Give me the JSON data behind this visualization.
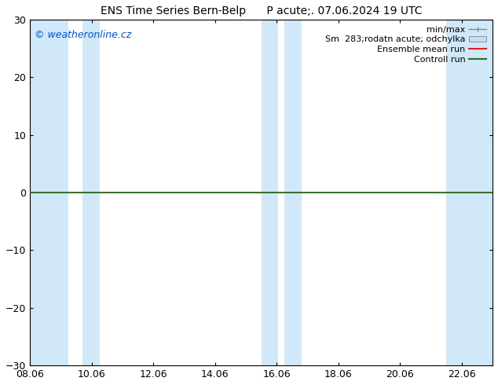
{
  "title_left": "ENS Time Series Bern-Belp",
  "title_right": "P acute;. 07.06.2024 19 UTC",
  "watermark": "© weatheronline.cz",
  "watermark_color": "#0055cc",
  "ylim": [
    -30,
    30
  ],
  "yticks": [
    -30,
    -20,
    -10,
    0,
    10,
    20,
    30
  ],
  "xlim_start": 0,
  "xlim_end": 15,
  "xtick_labels": [
    "08.06",
    "10.06",
    "12.06",
    "14.06",
    "16.06",
    "18.06",
    "20.06",
    "22.06"
  ],
  "xtick_positions": [
    0,
    2,
    4,
    6,
    8,
    10,
    12,
    14
  ],
  "background_color": "#ffffff",
  "band_color": "#d0e8f8",
  "control_line_color": "#2a6e2a",
  "mean_line_color": "#dd2222",
  "figsize": [
    6.34,
    4.9
  ],
  "dpi": 100,
  "font_size_title": 10,
  "font_size_ticks": 9,
  "font_size_legend": 8,
  "font_size_watermark": 9,
  "spine_color": "#000000",
  "legend_label_minmax": "min/max",
  "legend_label_band": "Sm  283;rodatn acute; odchylka",
  "legend_label_mean": "Ensemble mean run",
  "legend_label_ctrl": "Controll run",
  "legend_minmax_color": "#888888",
  "legend_band_color": "#c8dcea"
}
